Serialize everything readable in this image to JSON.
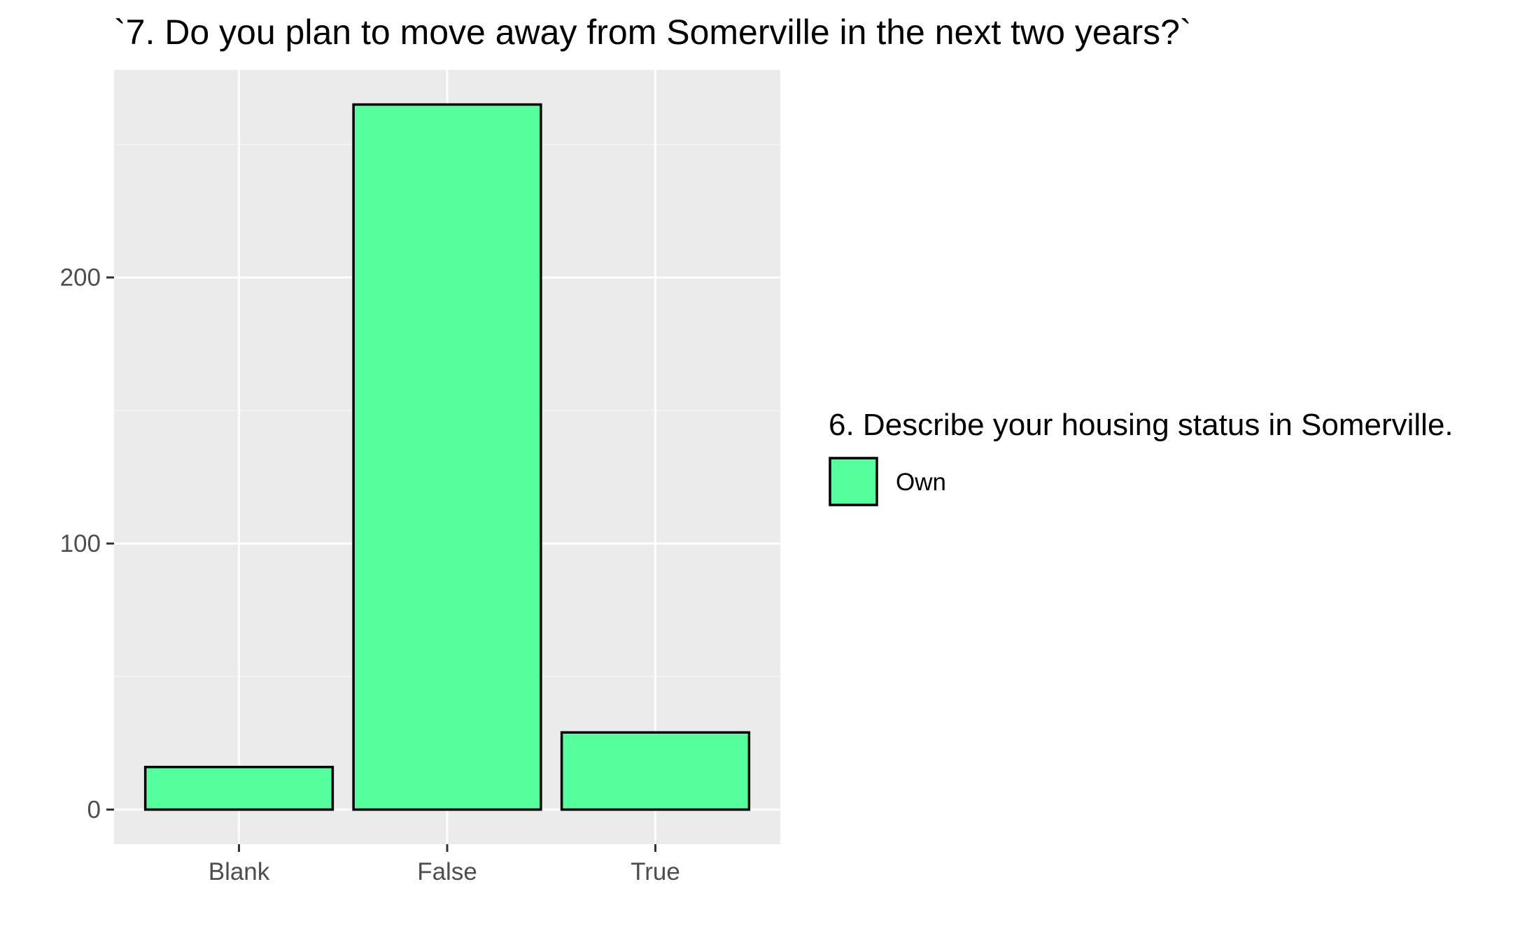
{
  "chart_data": {
    "type": "bar",
    "title": "`7. Do you plan to move away from Somerville in the next two years?`",
    "xlabel": "",
    "ylabel": "",
    "categories": [
      "Blank",
      "False",
      "True"
    ],
    "series": [
      {
        "name": "Own",
        "values": [
          16,
          265,
          29
        ]
      }
    ],
    "ylim": [
      -13,
      278
    ],
    "yticks": [
      0,
      100,
      200
    ],
    "ytick_labels": [
      "0",
      "100",
      "200"
    ],
    "grid": true,
    "legend": {
      "title": "6. Describe your housing status in Somerville.",
      "placement": "right",
      "entries": [
        "Own"
      ]
    },
    "colors": {
      "bar_fill": "#55ff9d",
      "bar_stroke": "#000000",
      "panel_bg": "#ebebeb",
      "grid_major": "#ffffff",
      "grid_minor": "#f5f5f5",
      "tick_text": "#4d4d4d",
      "tick_mark": "#333333"
    }
  }
}
